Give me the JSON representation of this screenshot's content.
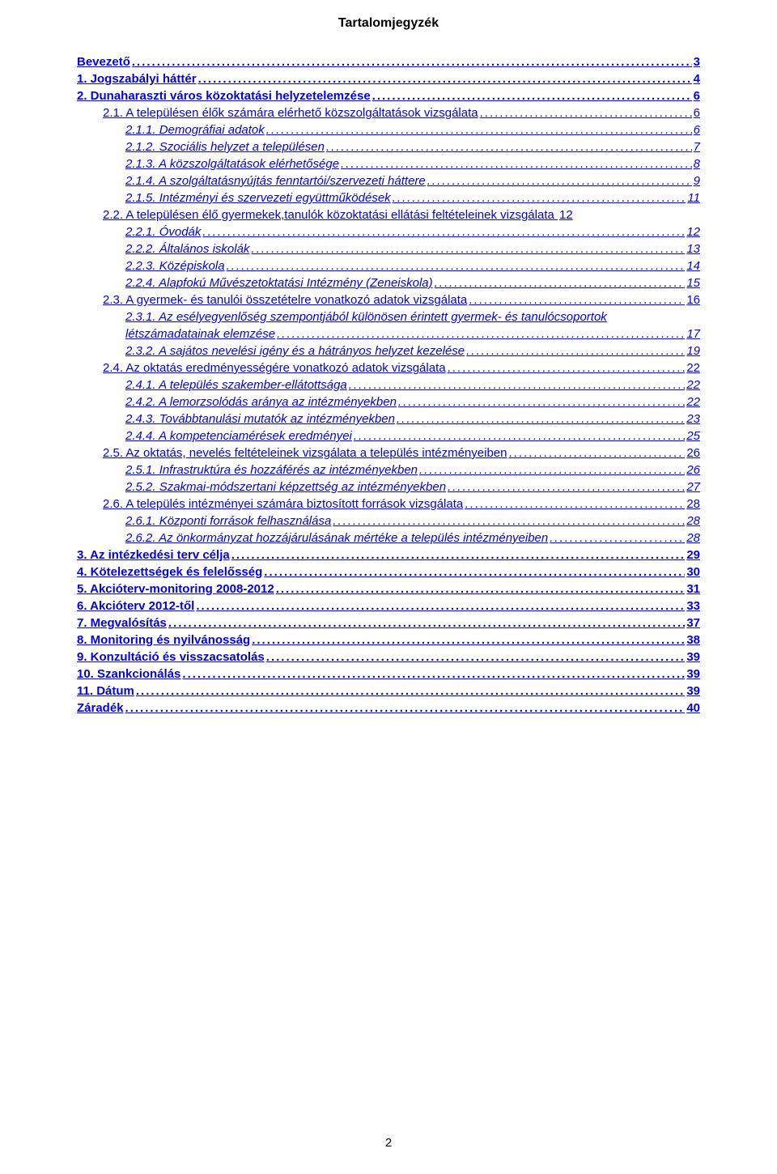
{
  "title": "Tartalomjegyzék",
  "page_number": "2",
  "colors": {
    "link": "#0000ee",
    "text": "#000000",
    "background": "#ffffff"
  },
  "toc": [
    {
      "label": "Bevezető",
      "page": "3",
      "level": 0,
      "bold": true,
      "italic": false
    },
    {
      "label": "1. Jogszabályi háttér",
      "page": "4",
      "level": 0,
      "bold": true,
      "italic": false
    },
    {
      "label": "2. Dunaharaszti város közoktatási helyzetelemzése",
      "page": "6",
      "level": 0,
      "bold": true,
      "italic": false
    },
    {
      "label": "2.1. A településen élők számára elérhető közszolgáltatások vizsgálata",
      "page": "6",
      "level": 1,
      "bold": false,
      "italic": false
    },
    {
      "label": "2.1.1. Demográfiai adatok",
      "page": "6",
      "level": 2,
      "bold": false,
      "italic": true
    },
    {
      "label": "2.1.2. Szociális helyzet a településen",
      "page": "7",
      "level": 2,
      "bold": false,
      "italic": true
    },
    {
      "label": "2.1.3. A közszolgáltatások elérhetősége",
      "page": "8",
      "level": 2,
      "bold": false,
      "italic": true
    },
    {
      "label": "2.1.4. A szolgáltatásnyújtás fenntartói/szervezeti háttere",
      "page": "9",
      "level": 2,
      "bold": false,
      "italic": true
    },
    {
      "label": "2.1.5. Intézményi és szervezeti együttműködések",
      "page": "11",
      "level": 2,
      "bold": false,
      "italic": true
    },
    {
      "label": "2.2. A településen élő gyermekek,tanulók közoktatási ellátási feltételeinek vizsgálata",
      "page": "12",
      "level": 1,
      "bold": false,
      "italic": false,
      "noleader": true
    },
    {
      "label": "2.2.1. Óvodák",
      "page": "12",
      "level": 2,
      "bold": false,
      "italic": true
    },
    {
      "label": "2.2.2. Általános iskolák",
      "page": "13",
      "level": 2,
      "bold": false,
      "italic": true
    },
    {
      "label": "2.2.3. Középiskola",
      "page": "14",
      "level": 2,
      "bold": false,
      "italic": true
    },
    {
      "label": "2.2.4. Alapfokú Művészetoktatási Intézmény (Zeneiskola)",
      "page": "15",
      "level": 2,
      "bold": false,
      "italic": true
    },
    {
      "label": "2.3. A gyermek- és tanulói összetételre vonatkozó adatok vizsgálata",
      "page": "16",
      "level": 1,
      "bold": false,
      "italic": false
    },
    {
      "label": "2.3.1. Az esélyegyenlőség szempontjából különösen érintett gyermek- és tanulócsoportok",
      "label2": "létszámadatainak elemzése",
      "page": "17",
      "level": 2,
      "bold": false,
      "italic": true,
      "wrap": true
    },
    {
      "label": "2.3.2. A sajátos nevelési igény és a hátrányos helyzet kezelése",
      "page": "19",
      "level": 2,
      "bold": false,
      "italic": true
    },
    {
      "label": "2.4. Az oktatás eredményességére vonatkozó adatok vizsgálata",
      "page": "22",
      "level": 1,
      "bold": false,
      "italic": false
    },
    {
      "label": "2.4.1. A település szakember-ellátottsága",
      "page": "22",
      "level": 2,
      "bold": false,
      "italic": true
    },
    {
      "label": "2.4.2. A lemorzsolódás aránya az intézményekben",
      "page": "22",
      "level": 2,
      "bold": false,
      "italic": true
    },
    {
      "label": "2.4.3. Továbbtanulási mutatók az intézményekben",
      "page": "23",
      "level": 2,
      "bold": false,
      "italic": true
    },
    {
      "label": "2.4.4. A kompetenciamérések eredményei",
      "page": "25",
      "level": 2,
      "bold": false,
      "italic": true
    },
    {
      "label": "2.5. Az oktatás, nevelés feltételeinek vizsgálata a település intézményeiben",
      "page": "26",
      "level": 1,
      "bold": false,
      "italic": false
    },
    {
      "label": "2.5.1. Infrastruktúra és hozzáférés az intézményekben",
      "page": "26",
      "level": 2,
      "bold": false,
      "italic": true
    },
    {
      "label": "2.5.2. Szakmai-módszertani képzettség az intézményekben",
      "page": "27",
      "level": 2,
      "bold": false,
      "italic": true
    },
    {
      "label": "2.6. A település intézményei számára biztosított források vizsgálata",
      "page": "28",
      "level": 1,
      "bold": false,
      "italic": false
    },
    {
      "label": "2.6.1. Központi források felhasználása",
      "page": "28",
      "level": 2,
      "bold": false,
      "italic": true
    },
    {
      "label": "2.6.2. Az önkormányzat hozzájárulásának mértéke a település intézményeiben",
      "page": "28",
      "level": 2,
      "bold": false,
      "italic": true
    },
    {
      "label": "3. Az intézkedési terv célja",
      "page": "29",
      "level": 0,
      "bold": true,
      "italic": false
    },
    {
      "label": "4. Kötelezettségek és felelősség",
      "page": "30",
      "level": 0,
      "bold": true,
      "italic": false
    },
    {
      "label": "5. Akcióterv-monitoring 2008-2012",
      "page": "31",
      "level": 0,
      "bold": true,
      "italic": false
    },
    {
      "label": "6. Akcióterv 2012-től",
      "page": "33",
      "level": 0,
      "bold": true,
      "italic": false
    },
    {
      "label": "7. Megvalósítás",
      "page": "37",
      "level": 0,
      "bold": true,
      "italic": false
    },
    {
      "label": "8. Monitoring és nyilvánosság",
      "page": "38",
      "level": 0,
      "bold": true,
      "italic": false
    },
    {
      "label": "9. Konzultáció és visszacsatolás",
      "page": "39",
      "level": 0,
      "bold": true,
      "italic": false
    },
    {
      "label": "10. Szankcionálás",
      "page": "39",
      "level": 0,
      "bold": true,
      "italic": false
    },
    {
      "label": "11. Dátum",
      "page": "39",
      "level": 0,
      "bold": true,
      "italic": false
    },
    {
      "label": "Záradék",
      "page": "40",
      "level": 0,
      "bold": true,
      "italic": false
    }
  ]
}
